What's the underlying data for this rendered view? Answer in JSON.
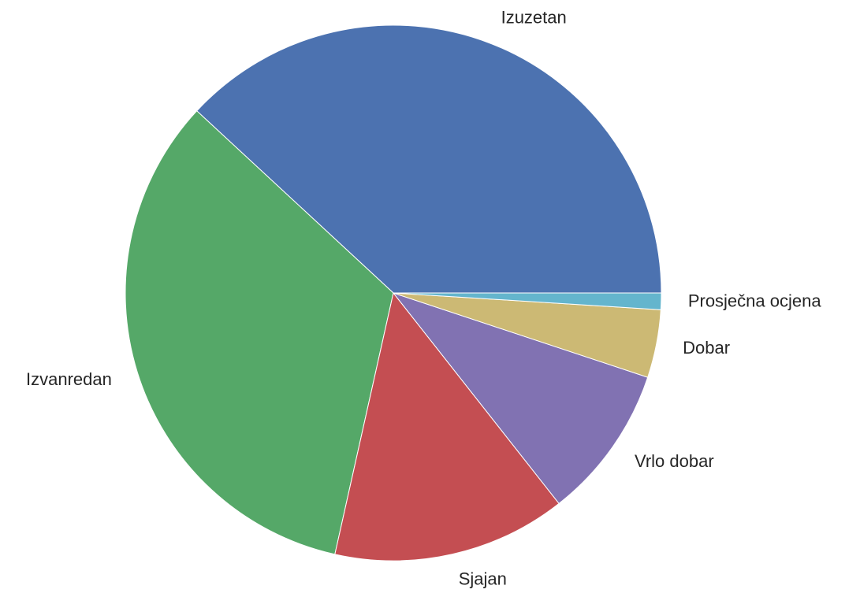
{
  "chart_data": {
    "type": "pie",
    "categories": [
      "Izuzetan",
      "Izvanredan",
      "Sjajan",
      "Vrlo dobar",
      "Dobar",
      "Prosječna ocjena"
    ],
    "values": [
      38.1,
      33.4,
      14.1,
      9.3,
      4.1,
      1.0
    ],
    "colors": [
      "#4c72b0",
      "#55a868",
      "#c44e52",
      "#8172b2",
      "#ccb974",
      "#64b5cd"
    ]
  }
}
